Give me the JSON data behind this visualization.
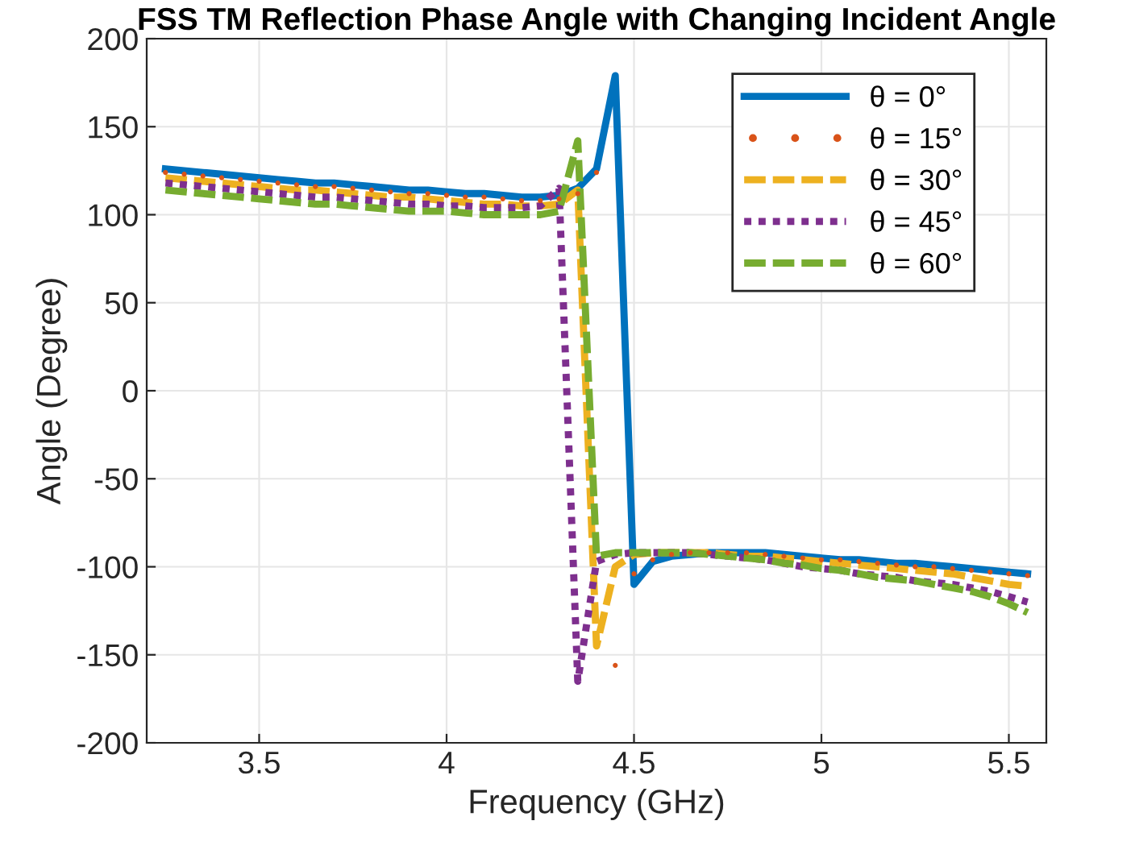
{
  "chart_data": {
    "type": "line",
    "title": "FSS TM Reflection Phase Angle with Changing Incident Angle",
    "xlabel": "Frequency (GHz)",
    "ylabel": "Angle (Degree)",
    "x": [
      3.25,
      3.3,
      3.35,
      3.4,
      3.45,
      3.5,
      3.55,
      3.6,
      3.65,
      3.7,
      3.75,
      3.8,
      3.85,
      3.9,
      3.95,
      4.0,
      4.05,
      4.1,
      4.15,
      4.2,
      4.25,
      4.3,
      4.35,
      4.4,
      4.45,
      4.5,
      4.55,
      4.6,
      4.65,
      4.7,
      4.75,
      4.8,
      4.85,
      4.9,
      4.95,
      5.0,
      5.05,
      5.1,
      5.15,
      5.2,
      5.25,
      5.3,
      5.35,
      5.4,
      5.45,
      5.5,
      5.55
    ],
    "series": [
      {
        "name": "θ = 0°",
        "color": "#0072bd",
        "line_style": "solid",
        "marker": "none",
        "values": [
          126,
          125,
          124,
          123,
          122,
          121,
          120,
          119,
          118,
          118,
          117,
          116,
          115,
          114,
          114,
          113,
          112,
          112,
          111,
          110,
          110,
          111,
          115,
          126,
          179,
          -110,
          -97,
          -94,
          -93,
          -92,
          -92,
          -92,
          -92,
          -93,
          -94,
          -95,
          -96,
          -96,
          -97,
          -98,
          -98,
          -99,
          -100,
          -101,
          -102,
          -103,
          -104
        ]
      },
      {
        "name": "θ = 15°",
        "type": "scatter",
        "color": "#d95319",
        "marker": "circle",
        "values": [
          124,
          123,
          122,
          121,
          120,
          119,
          118,
          117,
          116,
          116,
          115,
          114,
          113,
          112,
          112,
          111,
          110,
          110,
          109,
          108,
          108,
          109,
          112,
          124,
          -156,
          -104,
          -96,
          -93,
          -92,
          -92,
          -92,
          -92,
          -93,
          -94,
          -95,
          -96,
          -96,
          -97,
          -98,
          -99,
          -100,
          -100,
          -101,
          -102,
          -103,
          -104,
          -105
        ]
      },
      {
        "name": "θ = 30°",
        "color": "#edb120",
        "line_style": "dashed",
        "marker": "none",
        "values": [
          121,
          120,
          119,
          118,
          117,
          116,
          115,
          114,
          114,
          113,
          112,
          111,
          110,
          110,
          109,
          108,
          107,
          106,
          106,
          105,
          105,
          106,
          114,
          -145,
          -100,
          -93,
          -92,
          -92,
          -92,
          -92,
          -93,
          -94,
          -94,
          -95,
          -96,
          -97,
          -98,
          -99,
          -100,
          -101,
          -102,
          -103,
          -104,
          -106,
          -108,
          -110,
          -111
        ]
      },
      {
        "name": "θ = 45°",
        "color": "#7e2f8e",
        "line_style": "dotted",
        "marker": "none",
        "values": [
          118,
          117,
          116,
          115,
          114,
          113,
          112,
          111,
          110,
          110,
          109,
          108,
          107,
          106,
          106,
          105,
          105,
          104,
          104,
          104,
          105,
          115,
          -165,
          -97,
          -93,
          -92,
          -92,
          -92,
          -92,
          -93,
          -94,
          -95,
          -96,
          -98,
          -100,
          -101,
          -102,
          -104,
          -105,
          -106,
          -108,
          -109,
          -110,
          -112,
          -114,
          -117,
          -120
        ]
      },
      {
        "name": "θ = 60°",
        "color": "#77ac30",
        "line_style": "dashed",
        "marker": "none",
        "values": [
          114,
          113,
          112,
          111,
          110,
          109,
          108,
          107,
          106,
          106,
          105,
          104,
          103,
          102,
          102,
          102,
          101,
          100,
          100,
          100,
          100,
          102,
          142,
          -94,
          -92,
          -92,
          -92,
          -92,
          -92,
          -93,
          -94,
          -95,
          -96,
          -98,
          -99,
          -101,
          -102,
          -104,
          -106,
          -107,
          -108,
          -110,
          -112,
          -114,
          -117,
          -121,
          -126
        ]
      }
    ],
    "xlim": [
      3.2,
      5.6
    ],
    "xticks": [
      3.5,
      4,
      4.5,
      5,
      5.5
    ],
    "ylim": [
      -200,
      200
    ],
    "yticks": [
      -200,
      -150,
      -100,
      -50,
      0,
      50,
      100,
      150,
      200
    ],
    "grid": true,
    "legend": "top right"
  }
}
